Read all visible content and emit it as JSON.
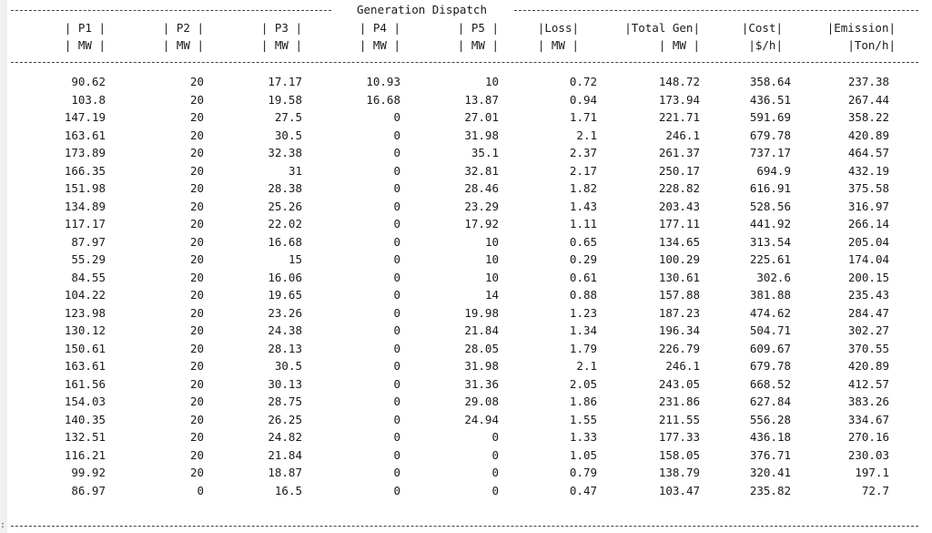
{
  "title": "Generation Dispatch",
  "columns": [
    {
      "key": "p1",
      "top": "| P1 |",
      "bottom": "| MW |"
    },
    {
      "key": "p2",
      "top": "| P2 |",
      "bottom": "| MW |"
    },
    {
      "key": "p3",
      "top": "| P3 |",
      "bottom": "| MW |"
    },
    {
      "key": "p4",
      "top": "| P4 |",
      "bottom": "| MW |"
    },
    {
      "key": "p5",
      "top": "| P5 |",
      "bottom": "| MW |"
    },
    {
      "key": "loss",
      "top": "|Loss|",
      "bottom": "| MW |"
    },
    {
      "key": "total",
      "top": "|Total Gen|",
      "bottom": "| MW |"
    },
    {
      "key": "cost",
      "top": "|Cost|",
      "bottom": "|$/h|"
    },
    {
      "key": "emission",
      "top": "|Emission|",
      "bottom": "|Ton/h|"
    }
  ],
  "rows": [
    [
      "90.62",
      "20",
      "17.17",
      "10.93",
      "10",
      "0.72",
      "148.72",
      "358.64",
      "237.38"
    ],
    [
      "103.8",
      "20",
      "19.58",
      "16.68",
      "13.87",
      "0.94",
      "173.94",
      "436.51",
      "267.44"
    ],
    [
      "147.19",
      "20",
      "27.5",
      "0",
      "27.01",
      "1.71",
      "221.71",
      "591.69",
      "358.22"
    ],
    [
      "163.61",
      "20",
      "30.5",
      "0",
      "31.98",
      "2.1",
      "246.1",
      "679.78",
      "420.89"
    ],
    [
      "173.89",
      "20",
      "32.38",
      "0",
      "35.1",
      "2.37",
      "261.37",
      "737.17",
      "464.57"
    ],
    [
      "166.35",
      "20",
      "31",
      "0",
      "32.81",
      "2.17",
      "250.17",
      "694.9",
      "432.19"
    ],
    [
      "151.98",
      "20",
      "28.38",
      "0",
      "28.46",
      "1.82",
      "228.82",
      "616.91",
      "375.58"
    ],
    [
      "134.89",
      "20",
      "25.26",
      "0",
      "23.29",
      "1.43",
      "203.43",
      "528.56",
      "316.97"
    ],
    [
      "117.17",
      "20",
      "22.02",
      "0",
      "17.92",
      "1.11",
      "177.11",
      "441.92",
      "266.14"
    ],
    [
      "87.97",
      "20",
      "16.68",
      "0",
      "10",
      "0.65",
      "134.65",
      "313.54",
      "205.04"
    ],
    [
      "55.29",
      "20",
      "15",
      "0",
      "10",
      "0.29",
      "100.29",
      "225.61",
      "174.04"
    ],
    [
      "84.55",
      "20",
      "16.06",
      "0",
      "10",
      "0.61",
      "130.61",
      "302.6",
      "200.15"
    ],
    [
      "104.22",
      "20",
      "19.65",
      "0",
      "14",
      "0.88",
      "157.88",
      "381.88",
      "235.43"
    ],
    [
      "123.98",
      "20",
      "23.26",
      "0",
      "19.98",
      "1.23",
      "187.23",
      "474.62",
      "284.47"
    ],
    [
      "130.12",
      "20",
      "24.38",
      "0",
      "21.84",
      "1.34",
      "196.34",
      "504.71",
      "302.27"
    ],
    [
      "150.61",
      "20",
      "28.13",
      "0",
      "28.05",
      "1.79",
      "226.79",
      "609.67",
      "370.55"
    ],
    [
      "163.61",
      "20",
      "30.5",
      "0",
      "31.98",
      "2.1",
      "246.1",
      "679.78",
      "420.89"
    ],
    [
      "161.56",
      "20",
      "30.13",
      "0",
      "31.36",
      "2.05",
      "243.05",
      "668.52",
      "412.57"
    ],
    [
      "154.03",
      "20",
      "28.75",
      "0",
      "29.08",
      "1.86",
      "231.86",
      "627.84",
      "383.26"
    ],
    [
      "140.35",
      "20",
      "26.25",
      "0",
      "24.94",
      "1.55",
      "211.55",
      "556.28",
      "334.67"
    ],
    [
      "132.51",
      "20",
      "24.82",
      "0",
      "0",
      "1.33",
      "177.33",
      "436.18",
      "270.16"
    ],
    [
      "116.21",
      "20",
      "21.84",
      "0",
      "0",
      "1.05",
      "158.05",
      "376.71",
      "230.03"
    ],
    [
      "99.92",
      "20",
      "18.87",
      "0",
      "0",
      "0.79",
      "138.79",
      "320.41",
      "197.1"
    ],
    [
      "86.97",
      "0",
      "16.5",
      "0",
      "0",
      "0.47",
      "103.47",
      "235.82",
      "72.7"
    ]
  ]
}
